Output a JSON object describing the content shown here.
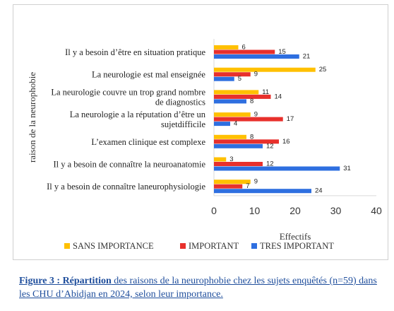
{
  "chart_data": {
    "type": "bar",
    "orientation": "horizontal",
    "categories": [
      "Il y a besoin d’être en situation pratique",
      "La neurologie est mal enseignée",
      "La neurologie couvre un trop grand nombre de diagnostics",
      "La neurologie a la réputation d’être un sujetdifficile",
      "L’examen clinique est complexe",
      "Il y a besoin de connaître la neuroanatomie",
      "Il y a besoin de connaître laneurophysiologie"
    ],
    "category_lines": [
      [
        "Il y a besoin d’être en situation pratique"
      ],
      [
        "La neurologie est mal enseignée"
      ],
      [
        "La neurologie couvre un trop grand nombre",
        "de diagnostics"
      ],
      [
        "La neurologie a la réputation d’être un",
        "sujetdifficile"
      ],
      [
        "L’examen clinique est complexe"
      ],
      [
        "Il y a besoin de connaître la neuroanatomie"
      ],
      [
        "Il y a besoin de connaître laneurophysiologie"
      ]
    ],
    "series": [
      {
        "name": "SANS IMPORTANCE",
        "color": "#ffc000",
        "values": [
          6,
          25,
          11,
          9,
          8,
          3,
          9
        ]
      },
      {
        "name": "IMPORTANT",
        "color": "#e8302c",
        "values": [
          15,
          9,
          14,
          17,
          16,
          12,
          7
        ]
      },
      {
        "name": "TRES IMPORTANT",
        "color": "#2e6fe0",
        "values": [
          21,
          5,
          8,
          4,
          12,
          31,
          24
        ]
      }
    ],
    "xlabel": "Effectifs",
    "ylabel": "raison de la neurophobie",
    "xlim": [
      0,
      40
    ],
    "xticks": [
      "0",
      "10",
      "20",
      "30",
      "40"
    ],
    "grid": false,
    "legend_position": "bottom"
  },
  "caption": {
    "bold": "Figure 3 : Répartition",
    "text": " des raisons de la neurophobie chez les sujets enquêtés (n=59) dans les CHU d’Abidjan en 2024, selon leur importance."
  }
}
